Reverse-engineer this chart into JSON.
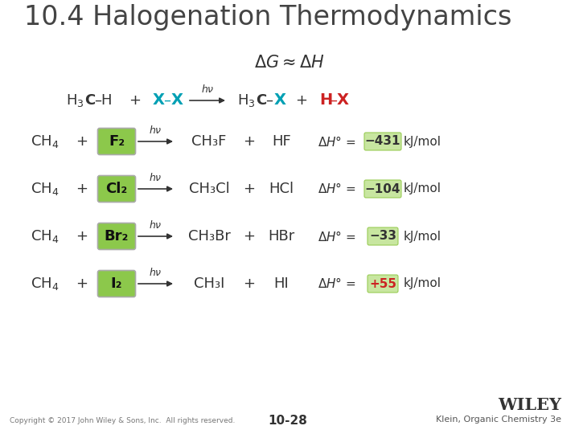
{
  "title": "10.4 Halogenation Thermodynamics",
  "bg_color": "#ffffff",
  "title_color": "#444444",
  "title_fontsize": 24,
  "green_box_color": "#8cc84b",
  "green_highlight_color": "#c8e6a0",
  "cyan_color": "#00a0b4",
  "red_color": "#cc2222",
  "dark_color": "#333333",
  "rows": [
    {
      "halogen": "F₂",
      "product": "CH₃F",
      "hproduct": "HF",
      "dH": "−431",
      "positive": false
    },
    {
      "halogen": "Cl₂",
      "product": "CH₃Cl",
      "hproduct": "HCl",
      "dH": "−104",
      "positive": false
    },
    {
      "halogen": "Br₂",
      "product": "CH₃Br",
      "hproduct": "HBr",
      "dH": "−33",
      "positive": false
    },
    {
      "halogen": "I₂",
      "product": "CH₃I",
      "hproduct": "HI",
      "dH": "+55",
      "positive": true
    }
  ],
  "footer_copyright": "Copyright © 2017 John Wiley & Sons, Inc.  All rights reserved.",
  "footer_page": "10-28",
  "footer_right": "Klein, Organic Chemistry 3e",
  "footer_wiley": "WILEY"
}
